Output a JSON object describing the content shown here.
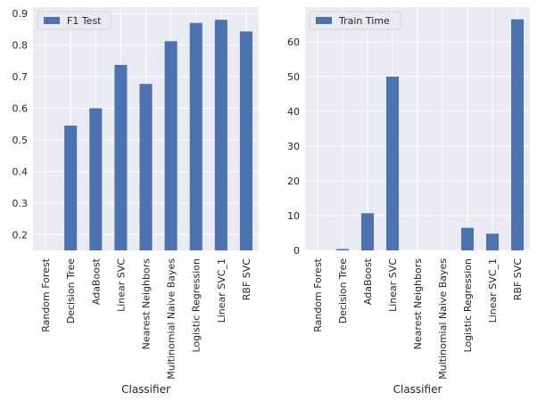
{
  "chart_data": [
    {
      "type": "bar",
      "categories": [
        "Random Forest",
        "Decision Tree",
        "AdaBoost",
        "Linear SVC",
        "Nearest Neighbors",
        "Multinomial Naive Bayes",
        "Logistic Regression",
        "Linear SVC_1",
        "RBF SVC"
      ],
      "series": [
        {
          "name": "F1 Test",
          "values": [
            0.15,
            0.545,
            0.6,
            0.737,
            0.677,
            0.812,
            0.87,
            0.88,
            0.843
          ]
        }
      ],
      "xlabel": "Classifier",
      "ylabel": "",
      "ylim": [
        0.15,
        0.92
      ],
      "yticks": [
        0.2,
        0.3,
        0.4,
        0.5,
        0.6,
        0.7,
        0.8,
        0.9
      ],
      "legend": "top-left",
      "grid": true
    },
    {
      "type": "bar",
      "categories": [
        "Random Forest",
        "Decision Tree",
        "AdaBoost",
        "Linear SVC",
        "Nearest Neighbors",
        "Multinomial Naive Bayes",
        "Logistic Regression",
        "Linear SVC_1",
        "RBF SVC"
      ],
      "series": [
        {
          "name": "Train Time",
          "values": [
            0.0,
            0.4,
            10.7,
            50.0,
            0.0,
            0.0,
            6.5,
            4.8,
            66.5
          ]
        }
      ],
      "xlabel": "Classifier",
      "ylabel": "",
      "ylim": [
        0,
        70
      ],
      "yticks": [
        0,
        10,
        20,
        30,
        40,
        50,
        60
      ],
      "legend": "top-left",
      "grid": true
    }
  ],
  "colors": {
    "bar": "#4c72b0",
    "panel_bg": "#eaeaf2",
    "grid": "#ffffff",
    "text": "#262626"
  }
}
